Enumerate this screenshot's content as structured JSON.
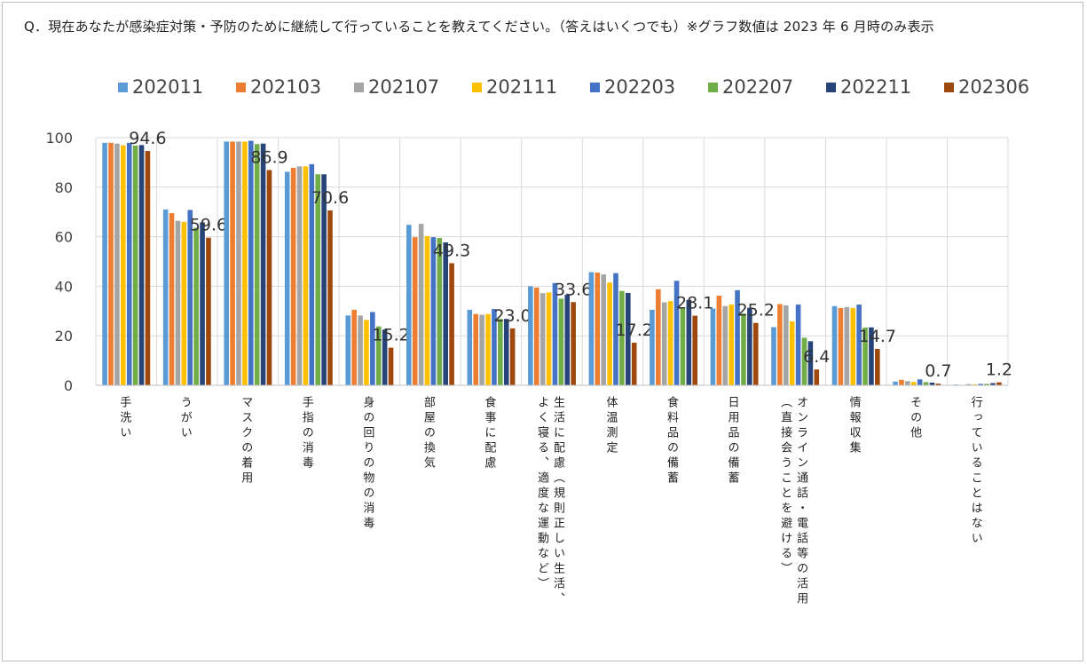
{
  "title": "Q．現在あなたが感染症対策・予防のために継続して行っていることを教えてください。（答えはいくつでも）※グラフ数値は 2023 年 6 月時のみ表示",
  "colors": [
    "#5b9bd5",
    "#ed7d31",
    "#a5a5a5",
    "#ffc000",
    "#4472c4",
    "#70ad47",
    "#264478",
    "#9e480e"
  ],
  "chart_data": {
    "type": "bar",
    "title": "",
    "xlabel": "",
    "ylabel": "",
    "ylim": [
      0,
      100
    ],
    "yticks": [
      0,
      20,
      40,
      60,
      80,
      100
    ],
    "grid": true,
    "legend_position": "top",
    "categories": [
      [
        "手洗い"
      ],
      [
        "うがい"
      ],
      [
        "マスクの着用"
      ],
      [
        "手指の消毒"
      ],
      [
        "身の回りの物の消毒"
      ],
      [
        "部屋の換気"
      ],
      [
        "食事に配慮"
      ],
      [
        "生活に配慮（規則正しい生活、",
        "よく寝る、適度な運動など）"
      ],
      [
        "体温測定"
      ],
      [
        "食料品の備蓄"
      ],
      [
        "日用品の備蓄"
      ],
      [
        "オンライン通話・電話等の活用",
        "（直接会うことを避ける）"
      ],
      [
        "情報収集"
      ],
      [
        "その他"
      ],
      [
        "行っていることはない"
      ]
    ],
    "series": [
      {
        "name": "202011",
        "values": [
          97.9,
          71.0,
          98.4,
          86.2,
          28.2,
          64.8,
          30.5,
          40.0,
          45.7,
          30.5,
          31.0,
          23.5,
          32.0,
          1.5,
          0.3
        ]
      },
      {
        "name": "202103",
        "values": [
          97.9,
          69.5,
          98.4,
          87.8,
          30.5,
          59.8,
          28.8,
          39.5,
          45.5,
          38.8,
          36.2,
          32.8,
          31.2,
          2.2,
          0.2
        ]
      },
      {
        "name": "202107",
        "values": [
          97.6,
          66.4,
          98.4,
          88.4,
          28.2,
          65.2,
          28.5,
          37.2,
          44.8,
          33.5,
          32.0,
          32.3,
          31.6,
          1.7,
          0.5
        ]
      },
      {
        "name": "202111",
        "values": [
          96.9,
          66.0,
          98.4,
          88.4,
          26.4,
          60.2,
          28.8,
          37.5,
          41.5,
          34.0,
          32.6,
          25.8,
          31.2,
          1.4,
          0.4
        ]
      },
      {
        "name": "202203",
        "values": [
          97.9,
          70.8,
          98.7,
          89.3,
          29.6,
          59.8,
          30.8,
          41.3,
          45.3,
          42.2,
          38.4,
          32.6,
          32.6,
          2.4,
          0.6
        ]
      },
      {
        "name": "202207",
        "values": [
          96.8,
          63.6,
          97.4,
          85.2,
          23.8,
          59.5,
          26.8,
          35.0,
          38.1,
          31.4,
          29.0,
          19.2,
          23.3,
          1.3,
          0.6
        ]
      },
      {
        "name": "202211",
        "values": [
          97.0,
          65.8,
          97.6,
          85.2,
          22.5,
          57.7,
          26.8,
          36.6,
          37.3,
          34.5,
          31.3,
          17.8,
          23.4,
          1.1,
          0.9
        ]
      },
      {
        "name": "202306",
        "values": [
          94.6,
          59.6,
          86.9,
          70.6,
          15.2,
          49.3,
          23.0,
          33.6,
          17.2,
          28.1,
          25.2,
          6.4,
          14.7,
          0.7,
          1.2
        ]
      }
    ],
    "data_labels": [
      "94.6",
      "59.6",
      "86.9",
      "70.6",
      "15.2",
      "49.3",
      "23.0",
      "33.6",
      "17.2",
      "28.1",
      "25.2",
      "6.4",
      "14.7",
      "0.7",
      "1.2"
    ]
  }
}
